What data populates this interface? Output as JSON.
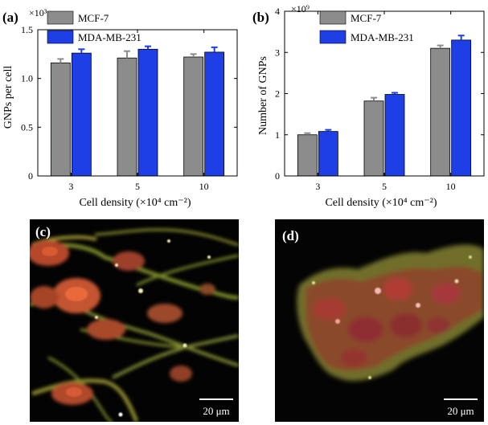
{
  "colors": {
    "mcf7": "#8c8c8c",
    "mda": "#1f3fe6",
    "axis": "#000000"
  },
  "charts": [
    {
      "panel": "(a)",
      "exponent": "×10³",
      "ylabel": "GNPs per cell",
      "xlabel": "Cell density (×10⁴ cm⁻²)"
    },
    {
      "panel": "(b)",
      "exponent": "×10⁹",
      "ylabel": "Number of GNPs",
      "xlabel": "Cell density (×10⁴ cm⁻²)"
    }
  ],
  "chart_data": [
    {
      "type": "bar",
      "title": "",
      "categories": [
        "3",
        "5",
        "10"
      ],
      "series": [
        {
          "name": "MCF-7",
          "values": [
            1.16,
            1.21,
            1.22
          ],
          "errors": [
            0.04,
            0.07,
            0.03
          ]
        },
        {
          "name": "MDA-MB-231",
          "values": [
            1.26,
            1.3,
            1.27
          ],
          "errors": [
            0.04,
            0.03,
            0.05
          ]
        }
      ],
      "ylim": [
        0,
        1.5
      ],
      "yticks": [
        "0",
        "0.5",
        "1.0",
        "1.5"
      ],
      "ytick_values": [
        0,
        0.5,
        1.0,
        1.5
      ],
      "legend_position": "top-left",
      "grid": false
    },
    {
      "type": "bar",
      "title": "",
      "categories": [
        "3",
        "5",
        "10"
      ],
      "series": [
        {
          "name": "MCF-7",
          "values": [
            1.0,
            1.82,
            3.1
          ],
          "errors": [
            0.04,
            0.08,
            0.07
          ]
        },
        {
          "name": "MDA-MB-231",
          "values": [
            1.08,
            1.98,
            3.3
          ],
          "errors": [
            0.04,
            0.04,
            0.11
          ]
        }
      ],
      "ylim": [
        0,
        4
      ],
      "yticks": [
        "0",
        "1",
        "2",
        "3",
        "4"
      ],
      "ytick_values": [
        0,
        1,
        2,
        3,
        4
      ],
      "legend_position": "top-left",
      "grid": false
    }
  ],
  "images": [
    {
      "panel": "(c)",
      "scale_bar": "20 μm"
    },
    {
      "panel": "(d)",
      "scale_bar": "20 μm"
    }
  ]
}
